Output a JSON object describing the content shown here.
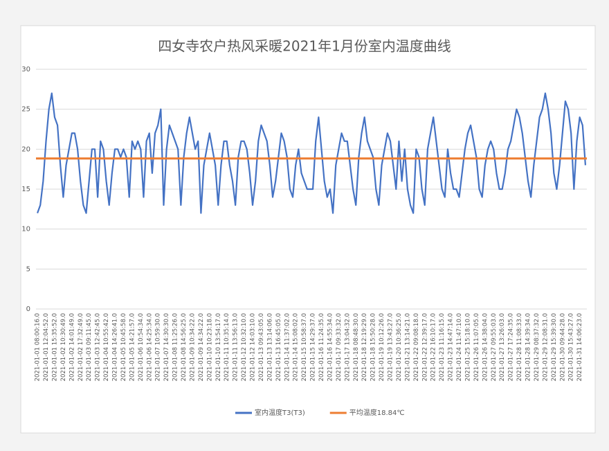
{
  "chart_data": {
    "type": "line",
    "title": "四女寺农户热风采暖2021年1月份室内温度曲线",
    "categories": [
      "2021-01-01 08:00:16.0",
      null,
      null,
      "2021-01-01 12:04:52.0",
      null,
      null,
      "2021-01-01 15:35:52.0",
      null,
      null,
      "2021-01-02 10:30:49.0",
      null,
      null,
      "2021-01-02 14:01:49.0",
      null,
      null,
      "2021-01-02 17:32:49.0",
      null,
      null,
      "2021-01-03 09:11:45.0",
      null,
      null,
      "2021-01-03 12:42:45.0",
      null,
      null,
      "2021-01-04 10:55:42.0",
      null,
      null,
      "2021-01-04 14:26:41.0",
      null,
      null,
      "2021-01-05 10:45:58.0",
      null,
      null,
      "2021-01-05 14:21:57.0",
      null,
      null,
      "2021-01-06 10:54:34.0",
      null,
      null,
      "2021-01-06 14:25:34.0",
      null,
      null,
      "2021-01-07 10:59:30.0",
      null,
      null,
      "2021-01-07 14:30:30.0",
      null,
      null,
      "2021-01-08 11:25:26.0",
      null,
      null,
      "2021-01-08 14:56:25.0",
      null,
      null,
      "2021-01-09 10:34:22.0",
      null,
      null,
      "2021-01-09 14:34:22.0",
      null,
      null,
      "2021-01-10 10:23:18.0",
      null,
      null,
      "2021-01-10 13:54:17.0",
      null,
      null,
      "2021-01-11 10:35:14.0",
      null,
      null,
      "2021-01-11 13:56:13.0",
      null,
      null,
      "2021-01-12 10:32:10.0",
      null,
      null,
      "2021-01-12 14:03:10.0",
      null,
      null,
      "2021-01-13 09:43:05.0",
      null,
      null,
      "2021-01-13 13:14:06.0",
      null,
      null,
      "2021-01-13 16:45:05.0",
      null,
      null,
      "2021-01-14 11:37:02.0",
      null,
      null,
      "2021-01-14 15:08:02.0",
      null,
      null,
      "2021-01-15 10:58:37.0",
      null,
      null,
      "2021-01-15 14:29:37.0",
      null,
      null,
      "2021-01-16 11:24:35.0",
      null,
      null,
      "2021-01-16 14:55:34.0",
      null,
      null,
      "2021-01-17 09:33:32.0",
      null,
      null,
      "2021-01-17 13:04:32.0",
      null,
      null,
      "2021-01-18 08:48:30.0",
      null,
      null,
      "2021-01-18 12:19:29.0",
      null,
      null,
      "2021-01-18 15:50:28.0",
      null,
      null,
      "2021-01-19 10:12:26.0",
      null,
      null,
      "2021-01-19 13:43:27.0",
      null,
      null,
      "2021-01-20 10:36:25.0",
      null,
      null,
      "2021-01-21 13:14:21.0",
      null,
      null,
      "2021-01-22 09:08:18.0",
      null,
      null,
      "2021-01-22 12:39:17.0",
      null,
      null,
      "2021-01-22 16:10:17.0",
      null,
      null,
      "2021-01-23 11:16:15.0",
      null,
      null,
      "2021-01-23 14:47:14.0",
      null,
      null,
      "2021-01-24 11:47:10.0",
      null,
      null,
      "2021-01-25 15:18:10.0",
      null,
      null,
      "2021-01-26 11:07:05.0",
      null,
      null,
      "2021-01-26 14:38:04.0",
      null,
      null,
      "2021-01-27 09:55:03.0",
      null,
      null,
      "2021-01-27 13:26:03.0",
      null,
      null,
      "2021-01-27 17:24:35.0",
      null,
      null,
      "2021-01-28 11:08:33.0",
      null,
      null,
      "2021-01-28 14:39:34.0",
      null,
      null,
      "2021-01-29 08:37:32.0",
      null,
      null,
      "2021-01-29 12:08:31.0",
      null,
      null,
      "2021-01-29 15:39:30.0",
      null,
      null,
      "2021-01-30 09:44:28.0",
      null,
      null,
      "2021-01-30 15:43:27.0",
      null,
      null,
      "2021-01-31 14:06:23.0",
      null,
      null
    ],
    "series": [
      {
        "name": "室内温度T3(T3)",
        "color": "#4472c4",
        "values": [
          12,
          13,
          16,
          21,
          25,
          27,
          24,
          23,
          18,
          14,
          18,
          20,
          22,
          22,
          20,
          16,
          13,
          12,
          16,
          20,
          20,
          14,
          21,
          20,
          16,
          13,
          17,
          20,
          20,
          19,
          20,
          19,
          14,
          21,
          20,
          21,
          20,
          14,
          21,
          22,
          17,
          22,
          23,
          25,
          13,
          20,
          23,
          22,
          21,
          20,
          13,
          19,
          22,
          24,
          22,
          20,
          21,
          12,
          18,
          20,
          22,
          20,
          18,
          13,
          18,
          21,
          21,
          18,
          16,
          13,
          19,
          21,
          21,
          20,
          17,
          13,
          16,
          21,
          23,
          22,
          21,
          18,
          14,
          16,
          19,
          22,
          21,
          19,
          15,
          14,
          18,
          20,
          17,
          16,
          15,
          15,
          15,
          21,
          24,
          20,
          16,
          14,
          15,
          12,
          18,
          20,
          22,
          21,
          21,
          18,
          15,
          13,
          19,
          22,
          24,
          21,
          20,
          19,
          15,
          13,
          18,
          20,
          22,
          21,
          18,
          15,
          21,
          16,
          20,
          15,
          13,
          12,
          20,
          19,
          15,
          13,
          20,
          22,
          24,
          21,
          18,
          15,
          14,
          20,
          17,
          15,
          15,
          14,
          17,
          20,
          22,
          23,
          21,
          19,
          15,
          14,
          18,
          20,
          21,
          20,
          17,
          15,
          15,
          17,
          20,
          21,
          23,
          25,
          24,
          22,
          19,
          16,
          14,
          18,
          21,
          24,
          25,
          27,
          25,
          22,
          17,
          15,
          18,
          22,
          26,
          25,
          22,
          15,
          21,
          24,
          23,
          18
        ]
      },
      {
        "name": "平均温度18.84℃",
        "color": "#ed7d31",
        "value": 18.84
      }
    ],
    "ylim": [
      0,
      30
    ],
    "yticks": [
      0,
      5,
      10,
      15,
      20,
      25,
      30
    ],
    "grid": true,
    "legend": "bottom"
  }
}
